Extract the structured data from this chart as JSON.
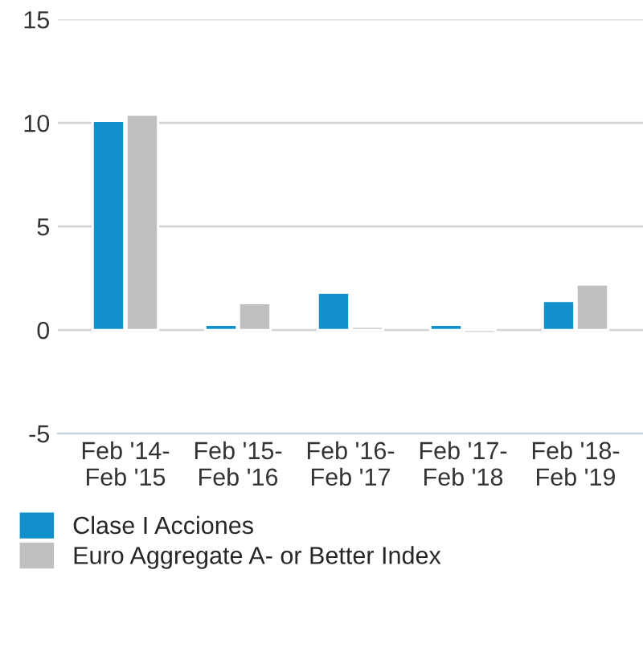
{
  "chart_data": {
    "type": "bar",
    "categories": [
      "Feb '14-\nFeb '15",
      "Feb '15-\nFeb '16",
      "Feb '16-\nFeb '17",
      "Feb '17-\nFeb '18",
      "Feb '18-\nFeb '19"
    ],
    "series": [
      {
        "name": "Clase I Acciones",
        "color": "#1190cb",
        "values": [
          10.1,
          0.25,
          1.8,
          0.25,
          1.4
        ]
      },
      {
        "name": "Euro Aggregate A- or Better Index",
        "color": "#c0c0c0",
        "values": [
          10.4,
          1.3,
          0.15,
          -0.15,
          2.2
        ]
      }
    ],
    "ylim": [
      -5,
      15
    ],
    "yticks": [
      -5,
      0,
      5,
      10,
      15
    ],
    "grid": "y",
    "legend": "bottom left"
  }
}
